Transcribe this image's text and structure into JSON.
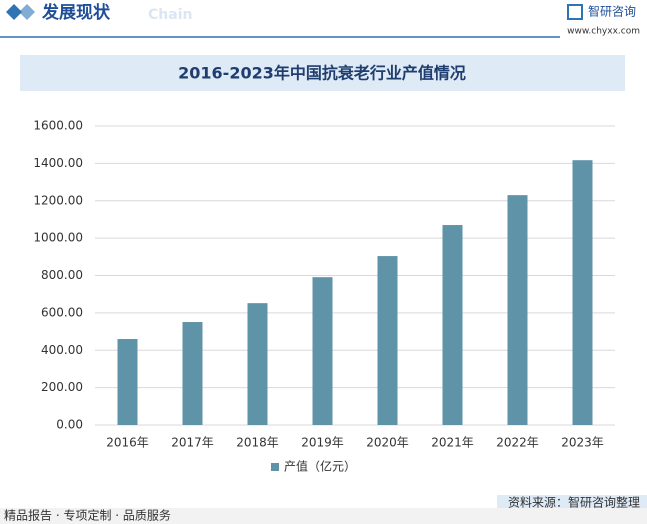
{
  "header": {
    "title": "发展现状",
    "subtitle": "Chain",
    "brand": "智研咨询",
    "url": "www.chyxx.com"
  },
  "chart_data": {
    "type": "bar",
    "title": "2016-2023年中国抗衰老行业产值情况",
    "categories": [
      "2016年",
      "2017年",
      "2018年",
      "2019年",
      "2020年",
      "2021年",
      "2022年",
      "2023年"
    ],
    "series": [
      {
        "name": "产值（亿元）",
        "color": "#5f93a8",
        "values": [
          460,
          551,
          652,
          791,
          904,
          1070,
          1230,
          1417
        ]
      }
    ],
    "ylim": [
      0,
      1600
    ],
    "yticks": [
      {
        "value": 0,
        "label": "0.00"
      },
      {
        "value": 200,
        "label": "200.00"
      },
      {
        "value": 400,
        "label": "400.00"
      },
      {
        "value": 600,
        "label": "600.00"
      },
      {
        "value": 800,
        "label": "800.00"
      },
      {
        "value": 1000,
        "label": "1000.00"
      },
      {
        "value": 1200,
        "label": "1200.00"
      },
      {
        "value": 1400,
        "label": "1400.00"
      },
      {
        "value": 1600,
        "label": "1600.00"
      }
    ],
    "grid": true,
    "legend": "bottom"
  },
  "footer": {
    "left": "精品报告 · 专项定制 · 品质服务",
    "source": "资料来源：智研咨询整理"
  }
}
